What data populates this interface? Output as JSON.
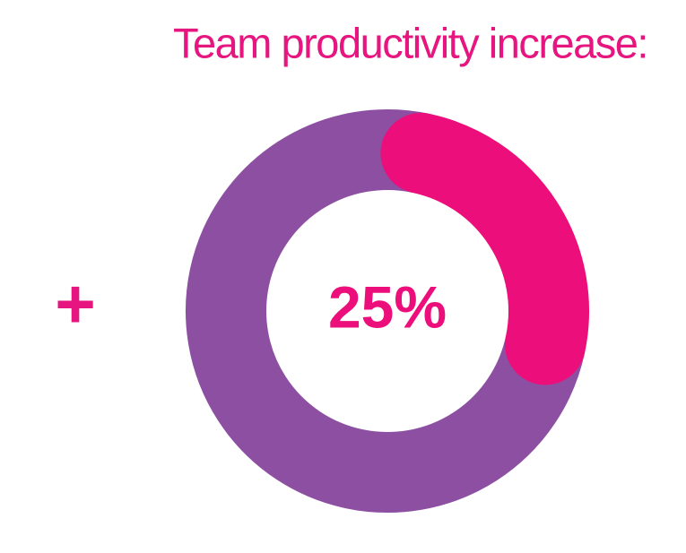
{
  "chart_data": {
    "type": "donut",
    "title": "Team productivity increase:",
    "annotation": "+",
    "series": [
      {
        "color": "#ec0e7b",
        "values": [
          25
        ],
        "value_labels": [
          "25%"
        ]
      },
      {
        "color": "#8d4fa2",
        "values": [
          75
        ]
      }
    ]
  }
}
